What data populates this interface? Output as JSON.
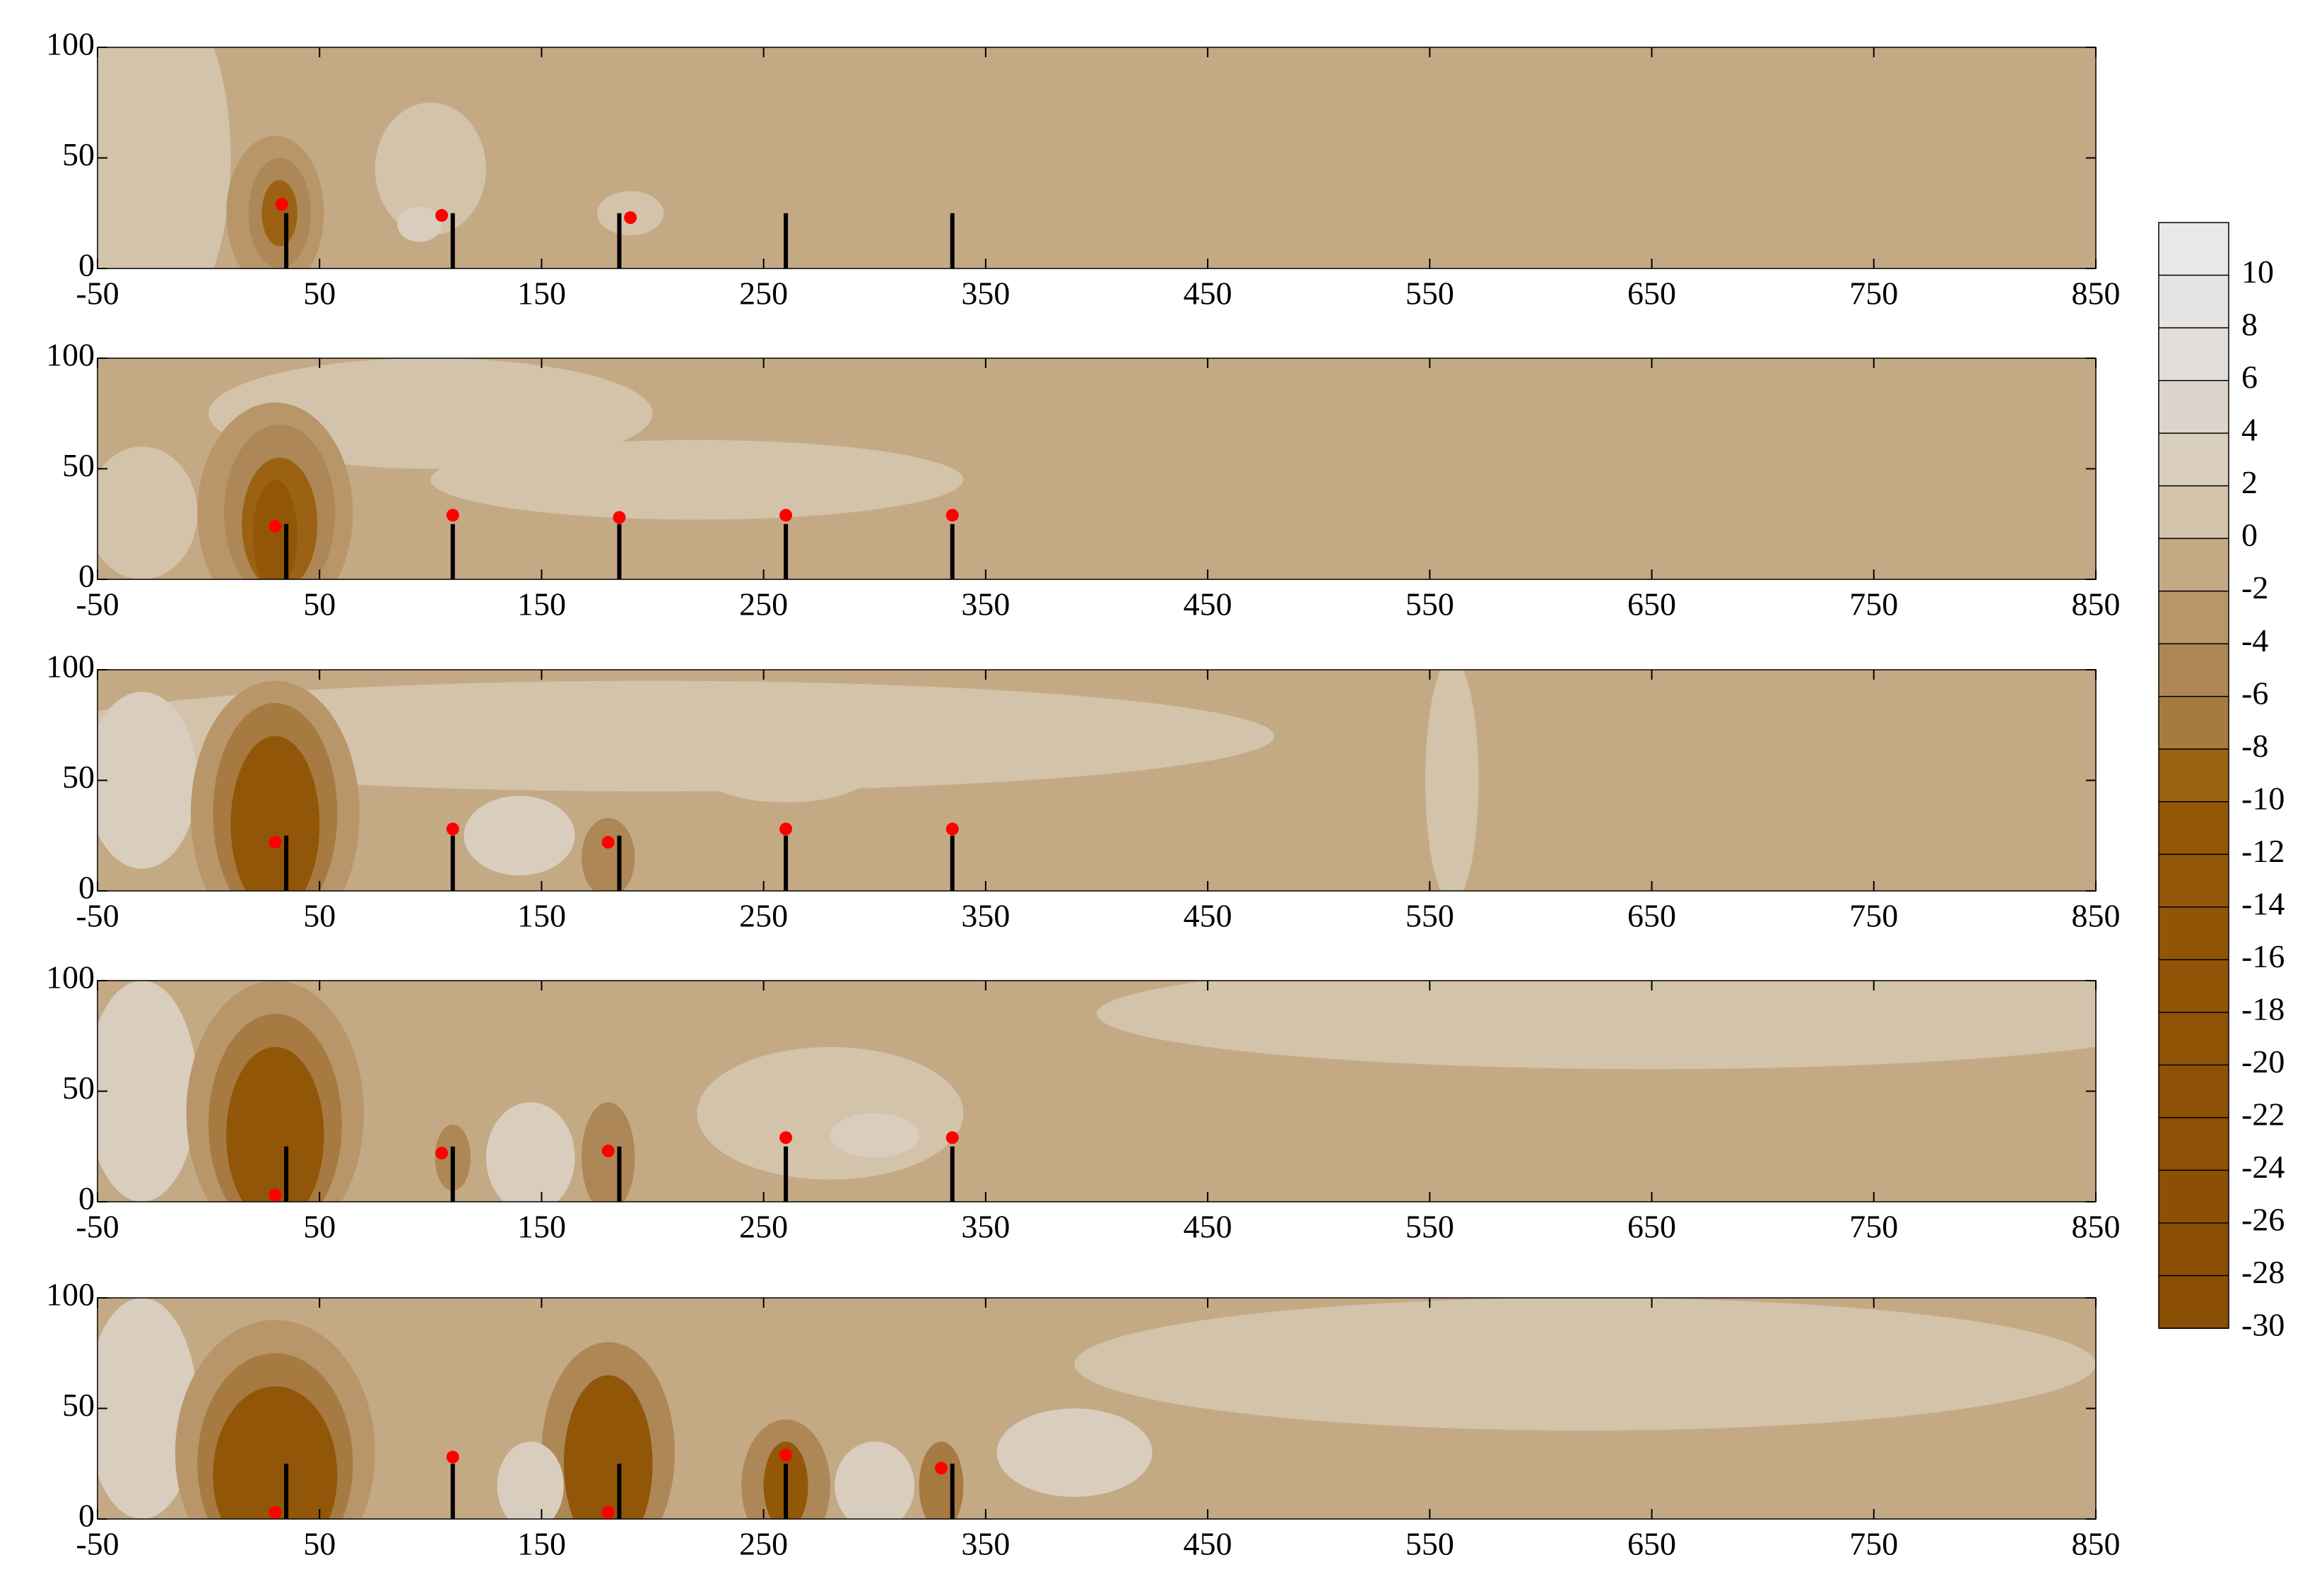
{
  "chart_data": [
    {
      "type": "contour",
      "xlim": [
        -50,
        850
      ],
      "ylim": [
        0,
        100
      ],
      "xticks": [
        -50,
        50,
        150,
        250,
        350,
        450,
        550,
        650,
        750,
        850
      ],
      "yticks": [
        0,
        50,
        100
      ],
      "base_level": -1,
      "regions": [
        {
          "x": -25,
          "y": 50,
          "rx": 35,
          "ry": 80,
          "level": 1
        },
        {
          "x": 30,
          "y": 25,
          "rx": 22,
          "ry": 35,
          "level": -3
        },
        {
          "x": 32,
          "y": 25,
          "rx": 14,
          "ry": 25,
          "level": -5
        },
        {
          "x": 32,
          "y": 25,
          "rx": 8,
          "ry": 15,
          "level": -8
        },
        {
          "x": 100,
          "y": 45,
          "rx": 25,
          "ry": 30,
          "level": 1
        },
        {
          "x": 95,
          "y": 20,
          "rx": 10,
          "ry": 8,
          "level": 3
        },
        {
          "x": 190,
          "y": 25,
          "rx": 15,
          "ry": 10,
          "level": 1
        }
      ],
      "piles_x": [
        35,
        110,
        185,
        260,
        335
      ],
      "piles_top": [
        25,
        25,
        25,
        25,
        25
      ],
      "pile_color": "#000000",
      "points": {
        "x": [
          33,
          105,
          190
        ],
        "y": [
          29,
          24,
          23
        ]
      },
      "point_color": "#ff0000"
    },
    {
      "type": "contour",
      "xlim": [
        -50,
        850
      ],
      "ylim": [
        0,
        100
      ],
      "xticks": [
        -50,
        50,
        150,
        250,
        350,
        450,
        550,
        650,
        750,
        850
      ],
      "yticks": [
        0,
        50,
        100
      ],
      "base_level": -1,
      "regions": [
        {
          "x": -30,
          "y": 30,
          "rx": 25,
          "ry": 30,
          "level": 1
        },
        {
          "x": 100,
          "y": 75,
          "rx": 100,
          "ry": 25,
          "level": 1
        },
        {
          "x": 220,
          "y": 45,
          "rx": 120,
          "ry": 18,
          "level": 1
        },
        {
          "x": 30,
          "y": 30,
          "rx": 35,
          "ry": 50,
          "level": -3
        },
        {
          "x": 32,
          "y": 30,
          "rx": 25,
          "ry": 40,
          "level": -5
        },
        {
          "x": 32,
          "y": 25,
          "rx": 17,
          "ry": 30,
          "level": -8
        },
        {
          "x": 30,
          "y": 20,
          "rx": 10,
          "ry": 25,
          "level": -12
        }
      ],
      "piles_x": [
        35,
        110,
        185,
        260,
        335
      ],
      "piles_top": [
        25,
        25,
        25,
        25,
        25
      ],
      "pile_color": "#000000",
      "points": {
        "x": [
          30,
          110,
          185,
          260,
          335
        ],
        "y": [
          24,
          29,
          28,
          29,
          29
        ]
      },
      "point_color": "#ff0000"
    },
    {
      "type": "contour",
      "xlim": [
        -50,
        850
      ],
      "ylim": [
        0,
        100
      ],
      "xticks": [
        -50,
        50,
        150,
        250,
        350,
        450,
        550,
        650,
        750,
        850
      ],
      "yticks": [
        0,
        50,
        100
      ],
      "base_level": -1,
      "regions": [
        {
          "x": 200,
          "y": 70,
          "rx": 280,
          "ry": 25,
          "level": 1
        },
        {
          "x": 560,
          "y": 50,
          "rx": 12,
          "ry": 55,
          "level": 1
        },
        {
          "x": -30,
          "y": 50,
          "rx": 25,
          "ry": 40,
          "level": 3
        },
        {
          "x": 30,
          "y": 35,
          "rx": 38,
          "ry": 60,
          "level": -3
        },
        {
          "x": 30,
          "y": 35,
          "rx": 28,
          "ry": 50,
          "level": -6
        },
        {
          "x": 30,
          "y": 30,
          "rx": 20,
          "ry": 40,
          "level": -12
        },
        {
          "x": 140,
          "y": 25,
          "rx": 25,
          "ry": 18,
          "level": 3
        },
        {
          "x": 180,
          "y": 15,
          "rx": 12,
          "ry": 18,
          "level": -4
        },
        {
          "x": 260,
          "y": 55,
          "rx": 40,
          "ry": 15,
          "level": 1
        }
      ],
      "piles_x": [
        35,
        110,
        185,
        260,
        335
      ],
      "piles_top": [
        25,
        25,
        25,
        25,
        25
      ],
      "pile_color": "#000000",
      "points": {
        "x": [
          30,
          110,
          180,
          260,
          335
        ],
        "y": [
          22,
          28,
          22,
          28,
          28
        ]
      },
      "point_color": "#ff0000"
    },
    {
      "type": "contour",
      "xlim": [
        -50,
        850
      ],
      "ylim": [
        0,
        100
      ],
      "xticks": [
        -50,
        50,
        150,
        250,
        350,
        450,
        550,
        650,
        750,
        850
      ],
      "yticks": [
        0,
        50,
        100
      ],
      "base_level": -1,
      "regions": [
        {
          "x": 650,
          "y": 85,
          "rx": 250,
          "ry": 25,
          "level": 1
        },
        {
          "x": -30,
          "y": 50,
          "rx": 25,
          "ry": 50,
          "level": 3
        },
        {
          "x": 30,
          "y": 40,
          "rx": 40,
          "ry": 60,
          "level": -3
        },
        {
          "x": 30,
          "y": 35,
          "rx": 30,
          "ry": 50,
          "level": -6
        },
        {
          "x": 30,
          "y": 30,
          "rx": 22,
          "ry": 40,
          "level": -12
        },
        {
          "x": 145,
          "y": 20,
          "rx": 20,
          "ry": 25,
          "level": 3
        },
        {
          "x": 180,
          "y": 20,
          "rx": 12,
          "ry": 25,
          "level": -5
        },
        {
          "x": 110,
          "y": 20,
          "rx": 8,
          "ry": 15,
          "level": -4
        },
        {
          "x": 280,
          "y": 40,
          "rx": 60,
          "ry": 30,
          "level": 1
        },
        {
          "x": 300,
          "y": 30,
          "rx": 20,
          "ry": 10,
          "level": 3
        }
      ],
      "piles_x": [
        35,
        110,
        185,
        260,
        335
      ],
      "piles_top": [
        25,
        25,
        25,
        25,
        25
      ],
      "pile_color": "#000000",
      "points": {
        "x": [
          30,
          105,
          180,
          260,
          335
        ],
        "y": [
          3,
          22,
          23,
          29,
          29
        ]
      },
      "point_color": "#ff0000"
    },
    {
      "type": "contour",
      "xlim": [
        -50,
        850
      ],
      "ylim": [
        0,
        100
      ],
      "xticks": [
        -50,
        50,
        150,
        250,
        350,
        450,
        550,
        650,
        750,
        850
      ],
      "yticks": [
        0,
        50,
        100
      ],
      "base_level": -1,
      "regions": [
        {
          "x": 620,
          "y": 70,
          "rx": 230,
          "ry": 30,
          "level": 1
        },
        {
          "x": -30,
          "y": 50,
          "rx": 25,
          "ry": 50,
          "level": 3
        },
        {
          "x": 30,
          "y": 30,
          "rx": 45,
          "ry": 60,
          "level": -3
        },
        {
          "x": 30,
          "y": 25,
          "rx": 35,
          "ry": 50,
          "level": -6
        },
        {
          "x": 30,
          "y": 20,
          "rx": 28,
          "ry": 40,
          "level": -12
        },
        {
          "x": 180,
          "y": 30,
          "rx": 30,
          "ry": 50,
          "level": -5
        },
        {
          "x": 180,
          "y": 25,
          "rx": 20,
          "ry": 40,
          "level": -12
        },
        {
          "x": 260,
          "y": 15,
          "rx": 20,
          "ry": 30,
          "level": -5
        },
        {
          "x": 260,
          "y": 15,
          "rx": 10,
          "ry": 20,
          "level": -10
        },
        {
          "x": 330,
          "y": 15,
          "rx": 10,
          "ry": 20,
          "level": -6
        },
        {
          "x": 145,
          "y": 15,
          "rx": 15,
          "ry": 20,
          "level": 3
        },
        {
          "x": 300,
          "y": 15,
          "rx": 18,
          "ry": 20,
          "level": 3
        },
        {
          "x": 390,
          "y": 30,
          "rx": 35,
          "ry": 20,
          "level": 3
        }
      ],
      "piles_x": [
        35,
        110,
        185,
        260,
        335
      ],
      "piles_top": [
        25,
        25,
        25,
        25,
        25
      ],
      "pile_color": "#000000",
      "points": {
        "x": [
          30,
          110,
          180,
          260,
          330
        ],
        "y": [
          3,
          28,
          3,
          29,
          23
        ]
      },
      "point_color": "#ff0000"
    },
    {
      "type": "colorbar",
      "lim": [
        -30,
        12
      ],
      "levels": [
        12,
        10,
        8,
        6,
        4,
        2,
        0,
        -2,
        -4,
        -6,
        -8,
        -10,
        -12,
        -14,
        -16,
        -18,
        -20,
        -22,
        -24,
        -26,
        -28,
        -30
      ],
      "colors": [
        "#e9e9e9",
        "#e5e4e2",
        "#e1ddd8",
        "#ddd5cb",
        "#d9cdbe",
        "#d3c3ab",
        "#c4a985",
        "#b8966a",
        "#ae8756",
        "#a67a40",
        "#9a6212",
        "#935708",
        "#925608",
        "#915507",
        "#905407",
        "#8f5306",
        "#8e5206",
        "#8d5105",
        "#8c5005",
        "#8b4f04",
        "#8a4e04"
      ],
      "ticks": [
        10,
        8,
        6,
        4,
        2,
        0,
        -2,
        -4,
        -6,
        -8,
        -10,
        -12,
        -14,
        -16,
        -18,
        -20,
        -22,
        -24,
        -26,
        -28,
        -30
      ]
    }
  ]
}
